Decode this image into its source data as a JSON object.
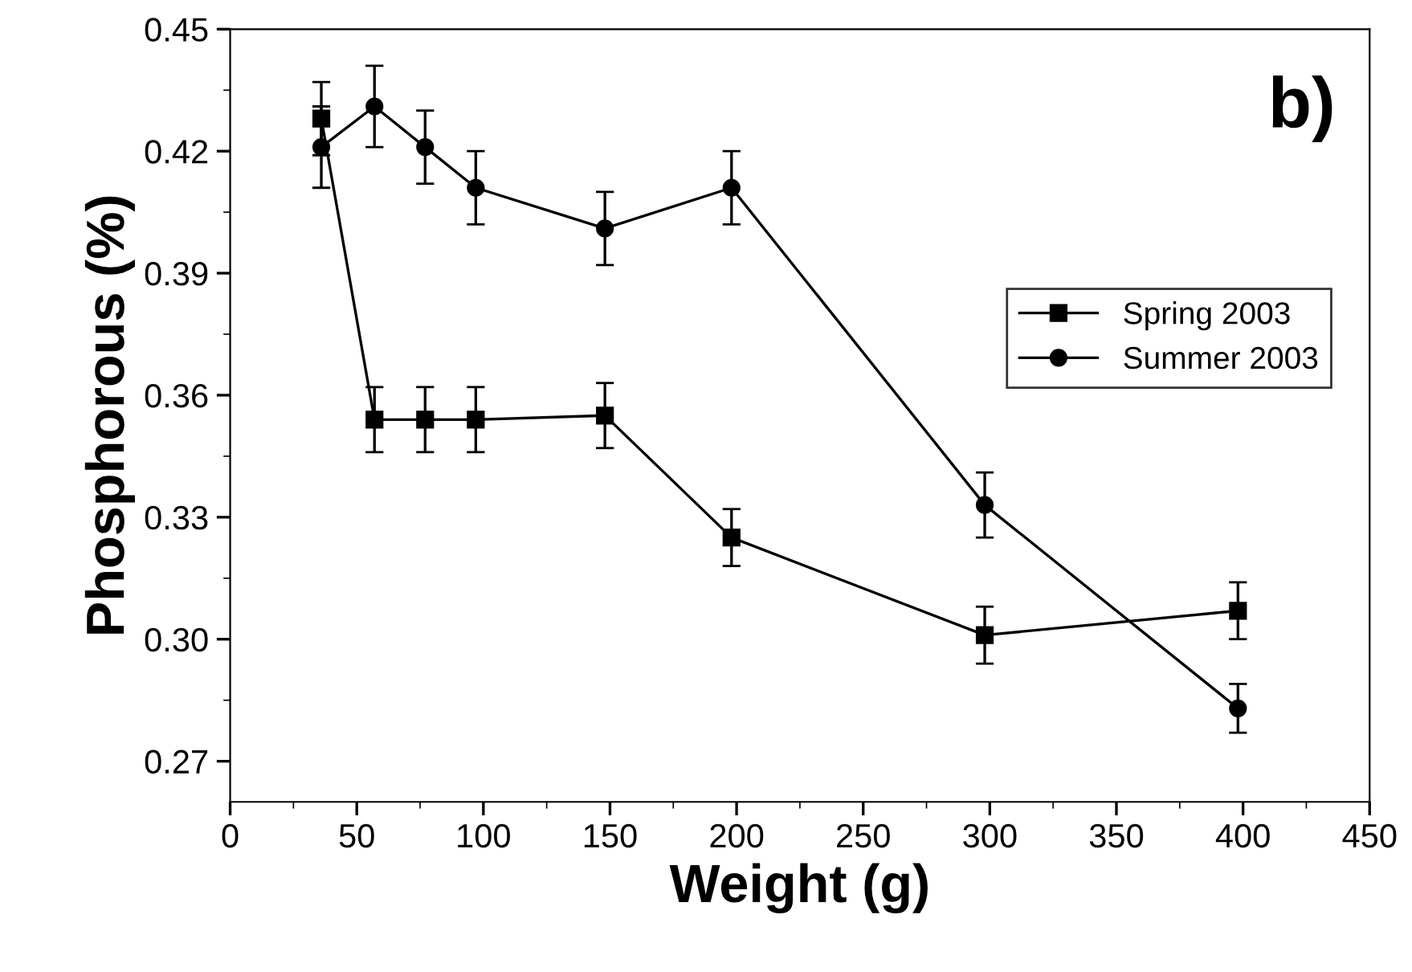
{
  "chart_data": {
    "type": "line",
    "xlabel": "Weight (g)",
    "ylabel": "Phosphorous (%)",
    "annotations": [
      "b)"
    ],
    "xlim": [
      0,
      450
    ],
    "xticks": [
      0,
      50,
      100,
      150,
      200,
      250,
      300,
      350,
      400,
      450
    ],
    "ylim": [
      0.26,
      0.45
    ],
    "yticks": [
      {
        "value": 0.27,
        "label": "0.27"
      },
      {
        "value": 0.3,
        "label": "0.30"
      },
      {
        "value": 0.33,
        "label": "0.33"
      },
      {
        "value": 0.36,
        "label": "0.36"
      },
      {
        "value": 0.39,
        "label": "0.39"
      },
      {
        "value": 0.42,
        "label": "0.42"
      },
      {
        "value": 0.45,
        "label": "0.45"
      }
    ],
    "grid": false,
    "legend": "right",
    "line_style": "solid",
    "series": [
      {
        "name": "Spring 2003",
        "color": "#000000",
        "marker": "square",
        "x": [
          36,
          57,
          77,
          97,
          148,
          198,
          298,
          398
        ],
        "values": [
          0.428,
          0.354,
          0.354,
          0.354,
          0.355,
          0.325,
          0.301,
          0.307
        ],
        "errors": [
          0.009,
          0.008,
          0.008,
          0.008,
          0.008,
          0.007,
          0.007,
          0.007
        ]
      },
      {
        "name": "Summer 2003",
        "color": "#000000",
        "marker": "circle",
        "x": [
          36,
          57,
          77,
          97,
          148,
          198,
          298,
          398
        ],
        "values": [
          0.421,
          0.431,
          0.421,
          0.411,
          0.401,
          0.411,
          0.333,
          0.283
        ],
        "errors": [
          0.01,
          0.01,
          0.009,
          0.009,
          0.009,
          0.009,
          0.008,
          0.006
        ]
      }
    ]
  }
}
